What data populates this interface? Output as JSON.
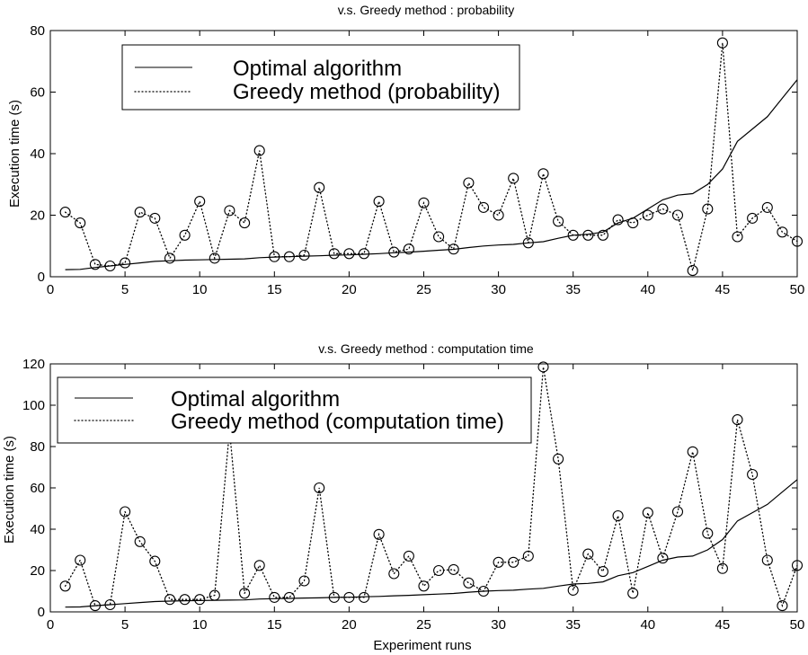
{
  "chart_data": [
    {
      "type": "line",
      "title": "v.s. Greedy method : probability",
      "xlabel": "",
      "ylabel": "Execution time (s)",
      "xlim": [
        0,
        50
      ],
      "ylim": [
        0,
        80
      ],
      "xticks": [
        0,
        5,
        10,
        15,
        20,
        25,
        30,
        35,
        40,
        45,
        50
      ],
      "yticks": [
        0,
        20,
        40,
        60,
        80
      ],
      "legend_position": "top-left",
      "x": [
        1,
        2,
        3,
        4,
        5,
        6,
        7,
        8,
        9,
        10,
        11,
        12,
        13,
        14,
        15,
        16,
        17,
        18,
        19,
        20,
        21,
        22,
        23,
        24,
        25,
        26,
        27,
        28,
        29,
        30,
        31,
        32,
        33,
        34,
        35,
        36,
        37,
        38,
        39,
        40,
        41,
        42,
        43,
        44,
        45,
        46,
        47,
        48,
        49,
        50
      ],
      "series": [
        {
          "name": "Optimal algorithm",
          "style": "solid",
          "marker": "none",
          "values": [
            2.3,
            2.4,
            3.0,
            3.5,
            4.0,
            4.5,
            5.0,
            5.2,
            5.4,
            5.5,
            5.6,
            5.7,
            5.8,
            6.2,
            6.4,
            6.5,
            6.7,
            6.8,
            7.0,
            7.1,
            7.3,
            7.5,
            7.8,
            8.0,
            8.3,
            8.6,
            8.9,
            9.5,
            10.0,
            10.3,
            10.5,
            11.0,
            11.4,
            12.5,
            13.5,
            13.8,
            14.5,
            17.5,
            19.0,
            22.0,
            25.0,
            26.5,
            27.0,
            30.0,
            35.0,
            44.0,
            48.0,
            52.0,
            58.0,
            64.0
          ]
        },
        {
          "name": "Greedy method (probability)",
          "style": "dotted",
          "marker": "circle",
          "values": [
            21,
            17.5,
            4,
            3.5,
            4.5,
            21,
            19,
            6,
            13.5,
            24.5,
            6,
            21.5,
            17.5,
            41,
            6.5,
            6.5,
            7,
            29,
            7.5,
            7.5,
            7.5,
            24.5,
            8,
            9,
            24,
            13,
            9,
            30.5,
            22.5,
            20,
            32,
            11,
            33.5,
            18,
            13.5,
            13.5,
            13.5,
            18.5,
            17.5,
            20,
            22,
            20,
            2,
            22,
            76,
            13,
            19,
            22.5,
            14.5,
            11.5
          ]
        }
      ]
    },
    {
      "type": "line",
      "title": "v.s. Greedy method : computation time",
      "xlabel": "Experiment runs",
      "ylabel": "Execution time (s)",
      "xlim": [
        0,
        50
      ],
      "ylim": [
        0,
        120
      ],
      "xticks": [
        0,
        5,
        10,
        15,
        20,
        25,
        30,
        35,
        40,
        45,
        50
      ],
      "yticks": [
        0,
        20,
        40,
        60,
        80,
        100,
        120
      ],
      "legend_position": "top-left",
      "x": [
        1,
        2,
        3,
        4,
        5,
        6,
        7,
        8,
        9,
        10,
        11,
        12,
        13,
        14,
        15,
        16,
        17,
        18,
        19,
        20,
        21,
        22,
        23,
        24,
        25,
        26,
        27,
        28,
        29,
        30,
        31,
        32,
        33,
        34,
        35,
        36,
        37,
        38,
        39,
        40,
        41,
        42,
        43,
        44,
        45,
        46,
        47,
        48,
        49,
        50
      ],
      "series": [
        {
          "name": "Optimal algorithm",
          "style": "solid",
          "marker": "none",
          "values": [
            2.3,
            2.4,
            3.0,
            3.5,
            4.0,
            4.5,
            5.0,
            5.2,
            5.4,
            5.5,
            5.6,
            5.7,
            5.8,
            6.2,
            6.4,
            6.5,
            6.7,
            6.8,
            7.0,
            7.1,
            7.3,
            7.5,
            7.8,
            8.0,
            8.3,
            8.6,
            8.9,
            9.5,
            10.0,
            10.3,
            10.5,
            11.0,
            11.4,
            12.5,
            13.5,
            13.8,
            14.5,
            17.5,
            19.0,
            22.0,
            25.0,
            26.5,
            27.0,
            30.0,
            35.0,
            44.0,
            48.0,
            52.0,
            58.0,
            64.0
          ]
        },
        {
          "name": "Greedy method (computation time)",
          "style": "dotted",
          "marker": "circle",
          "values": [
            12.5,
            25,
            3,
            3.5,
            48.5,
            34,
            24.5,
            6,
            6,
            6,
            8,
            88,
            9,
            22.5,
            7,
            7,
            15,
            60,
            7,
            7,
            7,
            37.5,
            18.5,
            27,
            12.5,
            20,
            20.5,
            14,
            10,
            24,
            24,
            27,
            118.5,
            74,
            10.5,
            28,
            19.5,
            46.5,
            9,
            48,
            26,
            48.5,
            77.5,
            38,
            21,
            93,
            66.5,
            25,
            3,
            22.5
          ]
        }
      ]
    }
  ]
}
